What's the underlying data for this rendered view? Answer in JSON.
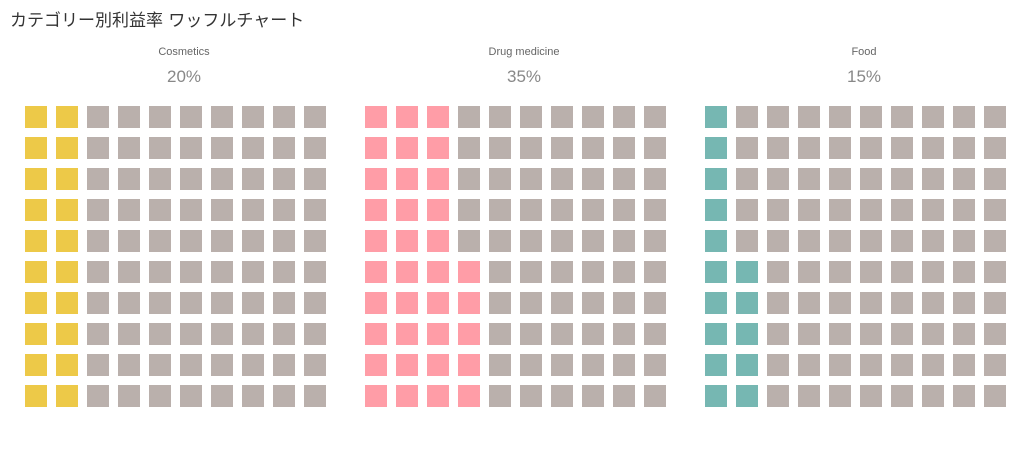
{
  "title": "カテゴリー別利益率 ワッフルチャート",
  "chart_data": {
    "type": "waffle",
    "title": "カテゴリー別利益率 ワッフルチャート",
    "grid": {
      "rows": 10,
      "cols": 10
    },
    "fill_order": "column-major, bottom-to-top, left-to-right",
    "empty_color": "#bab0ac",
    "series": [
      {
        "name": "Cosmetics",
        "value": 20,
        "label": "20%",
        "color": "#edc948"
      },
      {
        "name": "Drug medicine",
        "value": 35,
        "label": "35%",
        "color": "#ff9da7"
      },
      {
        "name": "Food",
        "value": 15,
        "label": "15%",
        "color": "#76b7b2"
      }
    ]
  }
}
